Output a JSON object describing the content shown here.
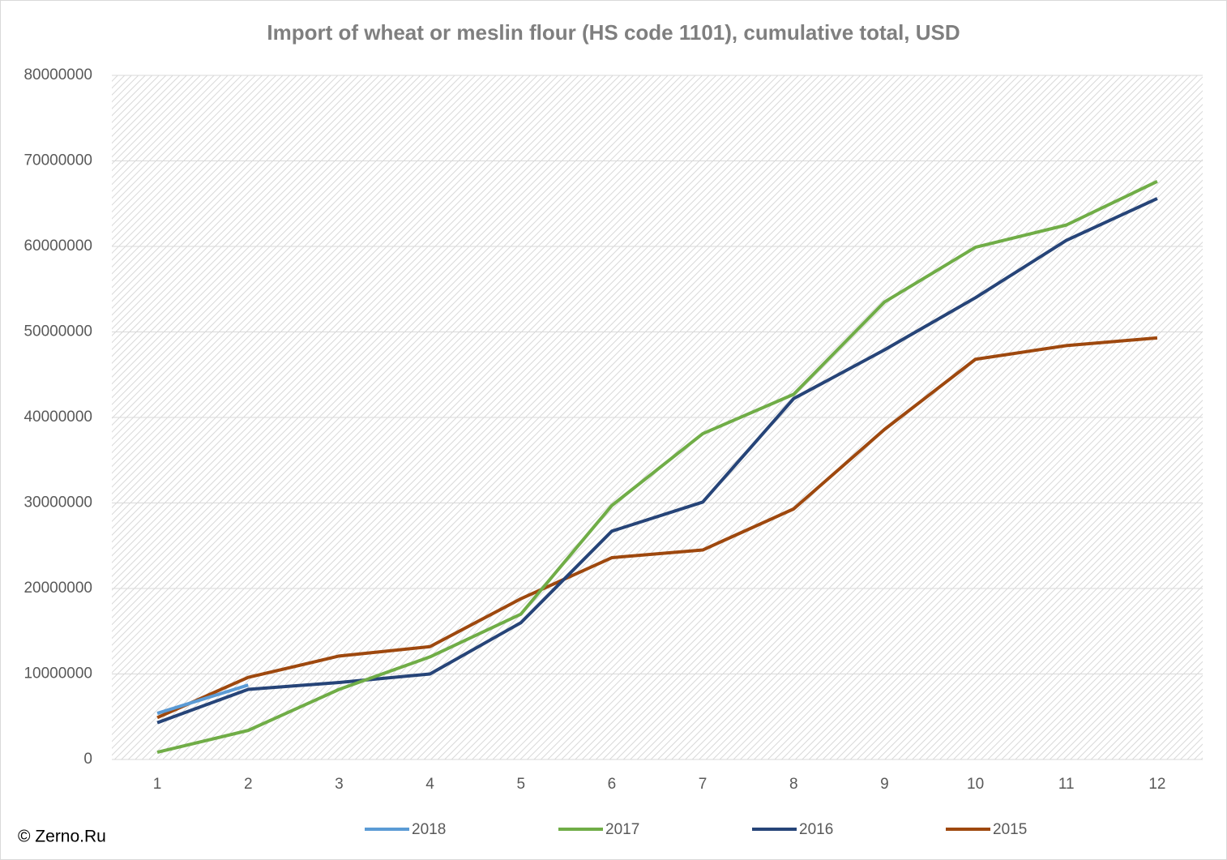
{
  "chart_data": {
    "type": "line",
    "title": "Import of wheat or meslin flour (HS code 1101), cumulative total, USD",
    "categories": [
      "1",
      "2",
      "3",
      "4",
      "5",
      "6",
      "7",
      "8",
      "9",
      "10",
      "11",
      "12"
    ],
    "series": [
      {
        "name": "2018",
        "color": "#5b9bd5",
        "values": [
          5400000,
          8700000,
          null,
          null,
          null,
          null,
          null,
          null,
          null,
          null,
          null,
          null
        ]
      },
      {
        "name": "2017",
        "color": "#70ad47",
        "values": [
          850000,
          3400000,
          8200000,
          12000000,
          17000000,
          29700000,
          38100000,
          42700000,
          53500000,
          59900000,
          62500000,
          67600000
        ]
      },
      {
        "name": "2016",
        "color": "#264478",
        "values": [
          4300000,
          8200000,
          9000000,
          10000000,
          16000000,
          26700000,
          30100000,
          42200000,
          47900000,
          54000000,
          60700000,
          65600000
        ]
      },
      {
        "name": "2015",
        "color": "#9e480e",
        "values": [
          4900000,
          9600000,
          12100000,
          13200000,
          18800000,
          23600000,
          24500000,
          29300000,
          38600000,
          46800000,
          48400000,
          49300000
        ]
      }
    ],
    "ylim": [
      0,
      80000000
    ],
    "yticks": [
      0,
      10000000,
      20000000,
      30000000,
      40000000,
      50000000,
      60000000,
      70000000,
      80000000
    ],
    "grid": true,
    "legend": "bottom",
    "source": "© Zerno.Ru"
  }
}
